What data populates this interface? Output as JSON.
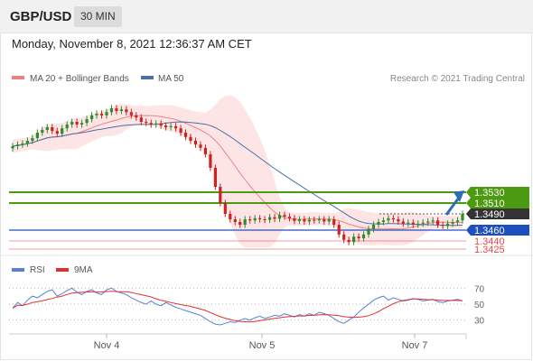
{
  "header": {
    "pair": "GBP/USD",
    "timeframe": "30 MIN"
  },
  "datetime": "Monday, November 8, 2021 12:36:37 AM CET",
  "legend": {
    "bollinger_label": "MA 20 + Bollinger Bands",
    "ma50_label": "MA 50",
    "credit": "Research © 2021 Trading Central"
  },
  "colors": {
    "bollinger": "#f08080",
    "bollinger_fill": "#fde0e0",
    "ma50": "#4a6fa5",
    "resistance": "#4c9a0f",
    "support_blue": "#1f4fbf",
    "support_red": "#e64646",
    "current": "#333333",
    "candle_up": "#2e8b2e",
    "candle_down": "#cc2222",
    "rsi": "#5a7fd6",
    "rsi_ma": "#e03030",
    "arrow": "#2e6db5"
  },
  "chart_data": [
    {
      "type": "candlestick",
      "title": "GBP/USD",
      "timeframe": "30 MIN",
      "ylim": [
        1.3415,
        1.3725
      ],
      "x_ticks": [
        "Nov 4",
        "Nov 5",
        "Nov 7"
      ],
      "close_path": [
        1.3615,
        1.3618,
        1.362,
        1.3625,
        1.363,
        1.364,
        1.3645,
        1.365,
        1.3643,
        1.3638,
        1.3648,
        1.3655,
        1.366,
        1.3655,
        1.3658,
        1.3665,
        1.3672,
        1.3675,
        1.3672,
        1.3678,
        1.3685,
        1.368,
        1.3683,
        1.3678,
        1.3672,
        1.3668,
        1.366,
        1.3658,
        1.3655,
        1.3657,
        1.3653,
        1.365,
        1.3652,
        1.3648,
        1.364,
        1.3632,
        1.3625,
        1.3618,
        1.3612,
        1.36,
        1.3575,
        1.354,
        1.351,
        1.349,
        1.348,
        1.3475,
        1.347,
        1.348,
        1.3478,
        1.3482,
        1.348,
        1.3479,
        1.3484,
        1.3481,
        1.3488,
        1.3485,
        1.3482,
        1.3477,
        1.348,
        1.3476,
        1.3479,
        1.3478,
        1.348,
        1.3476,
        1.348,
        1.347,
        1.3452,
        1.3442,
        1.3438,
        1.3448,
        1.3445,
        1.3452,
        1.3462,
        1.347,
        1.3475,
        1.3478,
        1.3482,
        1.348,
        1.3476,
        1.3472,
        1.3474,
        1.347,
        1.3472,
        1.3474,
        1.3476,
        1.3478,
        1.347,
        1.3468,
        1.3472,
        1.3475,
        1.3478,
        1.349
      ],
      "levels": {
        "resistance": [
          1.353,
          1.351
        ],
        "current": 1.349,
        "support_blue": 1.346,
        "support_red": [
          1.344,
          1.3425
        ]
      },
      "level_labels": {
        "r1": "1.3530",
        "r2": "1.3510",
        "current": "1.3490",
        "s1": "1.3460",
        "s2": "1.3440",
        "s3": "1.3425"
      }
    },
    {
      "type": "line",
      "title": "",
      "legend": [
        "RSI",
        "9MA"
      ],
      "ylim": [
        15,
        85
      ],
      "y_ticks": [
        70,
        50,
        30
      ],
      "rsi_path": [
        45,
        52,
        48,
        55,
        60,
        58,
        62,
        66,
        68,
        60,
        63,
        67,
        70,
        65,
        62,
        66,
        68,
        64,
        62,
        68,
        70,
        66,
        64,
        62,
        58,
        55,
        52,
        50,
        54,
        50,
        48,
        52,
        49,
        46,
        44,
        42,
        40,
        38,
        36,
        32,
        28,
        25,
        24,
        26,
        28,
        27,
        30,
        32,
        30,
        33,
        35,
        32,
        34,
        36,
        35,
        38,
        36,
        34,
        37,
        35,
        38,
        36,
        40,
        38,
        36,
        32,
        28,
        26,
        30,
        34,
        40,
        45,
        50,
        55,
        58,
        60,
        55,
        58,
        56,
        54,
        55,
        57,
        56,
        54,
        55,
        56,
        53,
        52,
        54,
        55,
        56,
        54
      ]
    }
  ]
}
